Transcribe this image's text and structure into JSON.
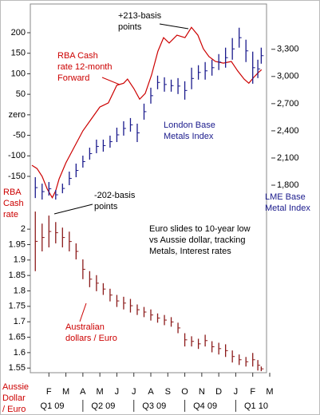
{
  "chart_data": [
    {
      "type": "line",
      "ylabel": [
        "RBA",
        "Cash",
        "rate"
      ],
      "y2label": [
        "LME Base",
        "Metal Index"
      ],
      "ylim": [
        -220,
        270
      ],
      "yticks": [
        -150,
        -100,
        -50,
        {
          "value": 0,
          "label": "zero"
        },
        50,
        100,
        150,
        200
      ],
      "y2lim": [
        1580,
        3800
      ],
      "y2ticks": [
        {
          "value": 1800,
          "label": "1,800"
        },
        {
          "value": 2100,
          "label": "2,100"
        },
        {
          "value": 2400,
          "label": "2,400"
        },
        {
          "value": 2700,
          "label": "2,700"
        },
        {
          "value": 3000,
          "label": "3,000"
        },
        {
          "value": 3300,
          "label": "3,300"
        }
      ],
      "series": [
        {
          "type": "line",
          "color": "#cc0000",
          "x": [
            0,
            0.3,
            0.6,
            0.9,
            1.2,
            1.4,
            1.6,
            2.0,
            2.5,
            3.0,
            3.5,
            4.0,
            4.5,
            5.0,
            5.4,
            5.63,
            6.0,
            6.34,
            6.67,
            7.04,
            7.42,
            7.75,
            8.08,
            8.54,
            9.01,
            9.39,
            9.77,
            10.09,
            10.42,
            10.8,
            11.27,
            11.74,
            12.11,
            12.49,
            12.77,
            13.05,
            13.33,
            13.52
          ],
          "values": [
            -123,
            -131,
            -150,
            -181,
            -202,
            -185,
            -156,
            -117,
            -78,
            -39,
            -10,
            19,
            29,
            72,
            77,
            87,
            64,
            38,
            52,
            97,
            155,
            188,
            175,
            194,
            188,
            213,
            194,
            161,
            142,
            130,
            126,
            130,
            107,
            87,
            77,
            91,
            103,
            110
          ]
        },
        {
          "type": "range",
          "axis": "y2",
          "color": "#1a1a8c",
          "x": [
            0.2,
            0.6,
            1.0,
            1.4,
            1.8,
            2.2,
            2.6,
            3.0,
            3.4,
            3.8,
            4.2,
            4.6,
            5.0,
            5.4,
            5.8,
            6.2,
            6.6,
            7.0,
            7.4,
            7.8,
            8.2,
            8.6,
            9.0,
            9.4,
            9.8,
            10.2,
            10.6,
            11.0,
            11.4,
            11.8,
            12.2,
            12.6,
            13.0,
            13.3,
            13.5
          ],
          "high": [
            1888,
            1817,
            1835,
            1747,
            1817,
            1950,
            2038,
            2126,
            2214,
            2303,
            2303,
            2347,
            2435,
            2506,
            2541,
            2479,
            2700,
            2876,
            3009,
            2991,
            2965,
            2982,
            2947,
            3097,
            3124,
            3159,
            3185,
            3247,
            3318,
            3424,
            3538,
            3406,
            3274,
            3185,
            3318
          ],
          "low": [
            1658,
            1641,
            1685,
            1641,
            1711,
            1800,
            1888,
            1994,
            2082,
            2153,
            2170,
            2214,
            2276,
            2347,
            2391,
            2276,
            2523,
            2700,
            2859,
            2832,
            2832,
            2806,
            2744,
            2859,
            2965,
            2965,
            3009,
            3071,
            3097,
            3185,
            3318,
            3159,
            2920,
            2982,
            3141
          ]
        }
      ],
      "annotations": [
        {
          "text": [
            "+213-basis",
            "points"
          ]
        },
        {
          "text": [
            "-202-basis",
            "points"
          ]
        },
        {
          "text": [
            "RBA Cash",
            "rate 12-month",
            "Forward"
          ]
        },
        {
          "text": [
            "London Base",
            "Metals Index"
          ]
        }
      ]
    },
    {
      "type": "range",
      "ylabel": [
        "Aussie",
        "Dollar",
        "/ Euro"
      ],
      "ylim": [
        1.535,
        2.065
      ],
      "yticks": [
        1.55,
        1.6,
        1.65,
        1.7,
        1.75,
        1.8,
        1.85,
        1.9,
        1.95,
        2
      ],
      "xlim": [
        0,
        14
      ],
      "xticks": [
        {
          "value": 1,
          "label": "F"
        },
        {
          "value": 2,
          "label": "M"
        },
        {
          "value": 3,
          "label": "A"
        },
        {
          "value": 4,
          "label": "M"
        },
        {
          "value": 5,
          "label": "J"
        },
        {
          "value": 6,
          "label": "J"
        },
        {
          "value": 7,
          "label": "A"
        },
        {
          "value": 8,
          "label": "S"
        },
        {
          "value": 9,
          "label": "O"
        },
        {
          "value": 10,
          "label": "N"
        },
        {
          "value": 11,
          "label": "D"
        },
        {
          "value": 12,
          "label": "J"
        },
        {
          "value": 13,
          "label": "F"
        },
        {
          "value": 14,
          "label": "M"
        }
      ],
      "quarters": [
        "Q1 09",
        "Q2 09",
        "Q3 09",
        "Q4 09",
        "Q1 10"
      ],
      "series": [
        {
          "type": "range",
          "color": "#8b1a1a",
          "x": [
            0.2,
            0.6,
            1.0,
            1.4,
            1.8,
            2.2,
            2.6,
            3.0,
            3.4,
            3.8,
            4.2,
            4.6,
            5.0,
            5.4,
            5.8,
            6.2,
            6.6,
            7.0,
            7.4,
            7.8,
            8.2,
            8.6,
            9.0,
            9.4,
            9.8,
            10.2,
            10.6,
            11.0,
            11.4,
            11.8,
            12.2,
            12.6,
            13.0,
            13.3,
            13.5
          ],
          "high": [
            2.057,
            2.018,
            2.044,
            2.023,
            2.005,
            1.992,
            1.954,
            1.902,
            1.864,
            1.851,
            1.825,
            1.807,
            1.787,
            1.781,
            1.774,
            1.756,
            1.748,
            1.74,
            1.727,
            1.722,
            1.715,
            1.697,
            1.663,
            1.653,
            1.645,
            1.658,
            1.637,
            1.632,
            1.627,
            1.607,
            1.594,
            1.586,
            1.599,
            1.576,
            1.555
          ],
          "low": [
            1.864,
            1.928,
            1.941,
            1.954,
            1.941,
            1.928,
            1.902,
            1.838,
            1.812,
            1.799,
            1.787,
            1.766,
            1.748,
            1.74,
            1.73,
            1.722,
            1.715,
            1.704,
            1.697,
            1.689,
            1.684,
            1.663,
            1.62,
            1.62,
            1.612,
            1.62,
            1.601,
            1.594,
            1.586,
            1.568,
            1.56,
            1.555,
            1.555,
            1.542,
            1.54
          ]
        }
      ],
      "annotations": [
        {
          "text": [
            "Euro slides to 10-year low",
            "vs Aussie dollar, tracking",
            "Metals, Interest rates"
          ]
        },
        {
          "text": [
            "Australian",
            "dollars / Euro"
          ]
        }
      ]
    }
  ]
}
